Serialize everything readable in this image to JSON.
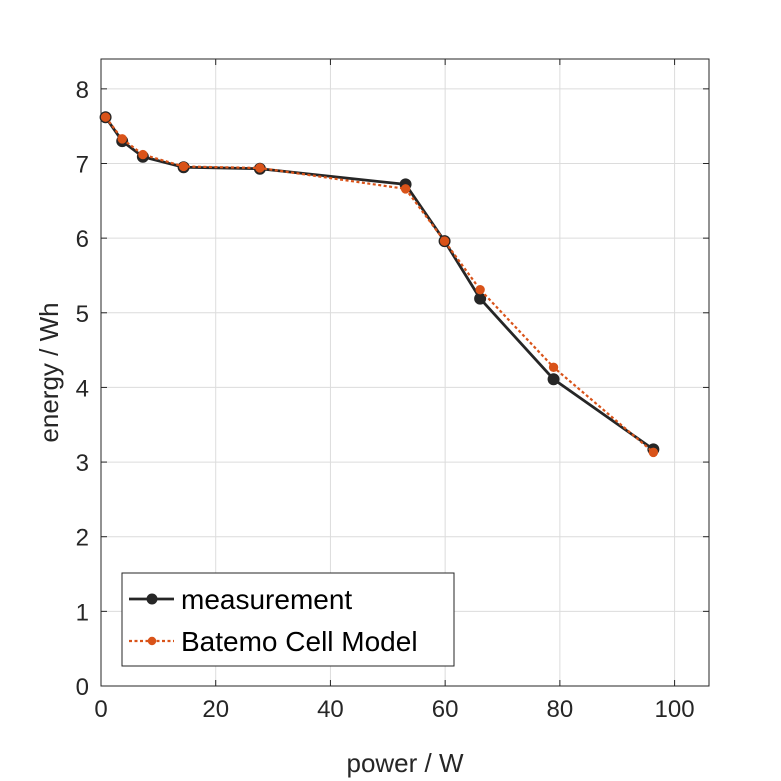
{
  "chart_data": {
    "type": "line",
    "xlabel": "power / W",
    "ylabel": "energy / Wh",
    "xlim": [
      0,
      106
    ],
    "ylim": [
      0,
      8.4
    ],
    "xticks": [
      "0",
      "20",
      "40",
      "60",
      "80",
      "100"
    ],
    "yticks": [
      "0",
      "1",
      "2",
      "3",
      "4",
      "5",
      "6",
      "7",
      "8"
    ],
    "grid": true,
    "legend_position": "bottom-left",
    "series": [
      {
        "name": "measurement",
        "color": "#262626",
        "line_style": "solid",
        "points": [
          [
            0.8,
            7.62
          ],
          [
            3.7,
            7.3
          ],
          [
            7.3,
            7.09
          ],
          [
            14.4,
            6.95
          ],
          [
            27.7,
            6.93
          ],
          [
            53.1,
            6.72
          ],
          [
            59.9,
            5.96
          ],
          [
            66.1,
            5.19
          ],
          [
            78.9,
            4.11
          ],
          [
            96.3,
            3.17
          ]
        ]
      },
      {
        "name": "Batemo Cell Model",
        "color": "#D95319",
        "line_style": "dotted",
        "points": [
          [
            0.8,
            7.62
          ],
          [
            3.7,
            7.33
          ],
          [
            7.3,
            7.12
          ],
          [
            14.4,
            6.96
          ],
          [
            27.7,
            6.94
          ],
          [
            53.1,
            6.66
          ],
          [
            59.9,
            5.96
          ],
          [
            66.1,
            5.31
          ],
          [
            78.9,
            4.27
          ],
          [
            96.3,
            3.13
          ]
        ]
      }
    ]
  }
}
